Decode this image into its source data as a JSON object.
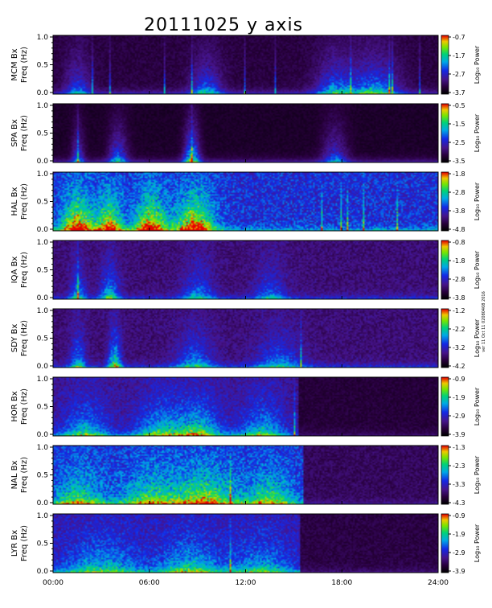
{
  "chart_data": {
    "type": "heatmap",
    "title": "20111025 y axis",
    "xlabel": "",
    "x_ticks": [
      "00:00",
      "06:00",
      "12:00",
      "18:00",
      "24:00"
    ],
    "x_range": [
      0,
      24
    ],
    "colorbar_label": "Log₁₀ Power",
    "side_note": "ver 11 Oct 11 02080408 2016",
    "panels": [
      {
        "station": "MCM Bx",
        "ylabel_station": "MCM Bx",
        "ylabel_unit": "Freq (Hz)",
        "y_ticks": [
          "1.0",
          "0.5",
          "0.0"
        ],
        "ylim": [
          0,
          1
        ],
        "colorbar_ticks": [
          "-0.7",
          "-1.7",
          "-2.7",
          "-3.7"
        ],
        "cmin": -3.7,
        "cmax": -0.7,
        "activity": [
          {
            "t": 1.5,
            "w": 0.8,
            "a": 0.5
          },
          {
            "t": 9.5,
            "w": 1.0,
            "a": 0.55
          },
          {
            "t": 17.5,
            "w": 1.2,
            "a": 0.6
          },
          {
            "t": 20.0,
            "w": 1.5,
            "a": 0.7
          }
        ],
        "lines": [
          2.4,
          3.5,
          6.9,
          8.6,
          11.9,
          13.8,
          18.5,
          20.9,
          21.1,
          22.8
        ],
        "base": 0.15
      },
      {
        "station": "SPA Bx",
        "ylabel_station": "SPA Bx",
        "ylabel_unit": "Freq (Hz)",
        "y_ticks": [
          "1.0",
          "0.5",
          "0.0"
        ],
        "ylim": [
          0,
          1
        ],
        "colorbar_ticks": [
          "-0.5",
          "-1.5",
          "-2.5",
          "-3.5"
        ],
        "cmin": -3.5,
        "cmax": -0.5,
        "activity": [
          {
            "t": 1.5,
            "w": 0.4,
            "a": 0.5
          },
          {
            "t": 4.0,
            "w": 0.6,
            "a": 0.6
          },
          {
            "t": 8.6,
            "w": 0.5,
            "a": 0.9
          },
          {
            "t": 17.5,
            "w": 0.8,
            "a": 0.5
          }
        ],
        "lines": [
          1.5,
          8.6
        ],
        "base": 0.1
      },
      {
        "station": "HAL Bx",
        "ylabel_station": "HAL Bx",
        "ylabel_unit": "Freq (Hz)",
        "y_ticks": [
          "1.0",
          "0.5",
          "0.0"
        ],
        "ylim": [
          0,
          1
        ],
        "colorbar_ticks": [
          "-1.8",
          "-2.8",
          "-3.8",
          "-4.8"
        ],
        "cmin": -4.8,
        "cmax": -1.8,
        "activity": [
          {
            "t": 1.5,
            "w": 1.0,
            "a": 1.0
          },
          {
            "t": 3.5,
            "w": 0.8,
            "a": 0.9
          },
          {
            "t": 6.0,
            "w": 1.0,
            "a": 1.0
          },
          {
            "t": 8.8,
            "w": 1.2,
            "a": 1.0
          }
        ],
        "lines": [
          16.7,
          17.9,
          18.3,
          19.3,
          21.4
        ],
        "base": 0.45
      },
      {
        "station": "IQA Bx",
        "ylabel_station": "IQA Bx",
        "ylabel_unit": "Freq (Hz)",
        "y_ticks": [
          "1.0",
          "0.5",
          "0.0"
        ],
        "ylim": [
          0,
          1
        ],
        "colorbar_ticks": [
          "-0.8",
          "-1.8",
          "-2.8",
          "-3.8"
        ],
        "cmin": -3.8,
        "cmax": -0.8,
        "activity": [
          {
            "t": 1.5,
            "w": 0.5,
            "a": 0.5
          },
          {
            "t": 3.5,
            "w": 0.6,
            "a": 0.6
          },
          {
            "t": 9.0,
            "w": 1.0,
            "a": 0.45
          },
          {
            "t": 13.5,
            "w": 1.0,
            "a": 0.4
          }
        ],
        "lines": [
          1.5
        ],
        "base": 0.25
      },
      {
        "station": "SDY Bx",
        "ylabel_station": "SDY Bx",
        "ylabel_unit": "Freq (Hz)",
        "y_ticks": [
          "1.0",
          "0.5",
          "0.0"
        ],
        "ylim": [
          0,
          1
        ],
        "colorbar_ticks": [
          "-1.2",
          "-2.2",
          "-3.2",
          "-4.2"
        ],
        "cmin": -4.2,
        "cmax": -1.2,
        "activity": [
          {
            "t": 1.5,
            "w": 0.5,
            "a": 0.55
          },
          {
            "t": 3.8,
            "w": 0.4,
            "a": 0.8
          },
          {
            "t": 8.8,
            "w": 1.2,
            "a": 0.5
          },
          {
            "t": 14.0,
            "w": 1.5,
            "a": 0.45
          }
        ],
        "lines": [
          15.4
        ],
        "base": 0.25
      },
      {
        "station": "HOR Bx",
        "ylabel_station": "HOR Bx",
        "ylabel_unit": "Freq (Hz)",
        "y_ticks": [
          "1.0",
          "0.5",
          "0.0"
        ],
        "ylim": [
          0,
          1
        ],
        "colorbar_ticks": [
          "-0.9",
          "-1.9",
          "-2.9",
          "-3.9"
        ],
        "cmin": -3.9,
        "cmax": -0.9,
        "activity": [
          {
            "t": 2.0,
            "w": 1.5,
            "a": 0.55
          },
          {
            "t": 6.5,
            "w": 1.5,
            "a": 0.6
          },
          {
            "t": 9.0,
            "w": 1.5,
            "a": 0.7
          },
          {
            "t": 13.0,
            "w": 1.5,
            "a": 0.55
          }
        ],
        "lines": [
          15.0
        ],
        "base": 0.3,
        "quiet_after": 15.2
      },
      {
        "station": "NAL Bx",
        "ylabel_station": "NAL Bx",
        "ylabel_unit": "Freq (Hz)",
        "y_ticks": [
          "1.0",
          "0.5",
          "0.0"
        ],
        "ylim": [
          0,
          1
        ],
        "colorbar_ticks": [
          "-1.3",
          "-2.3",
          "-3.3",
          "-4.3"
        ],
        "cmin": -4.3,
        "cmax": -1.3,
        "activity": [
          {
            "t": 1.5,
            "w": 1.5,
            "a": 0.55
          },
          {
            "t": 6.0,
            "w": 2.0,
            "a": 0.55
          },
          {
            "t": 9.5,
            "w": 2.0,
            "a": 0.7
          },
          {
            "t": 13.5,
            "w": 1.5,
            "a": 0.55
          }
        ],
        "lines": [
          11.0
        ],
        "base": 0.45,
        "quiet_after": 15.5
      },
      {
        "station": "LYR Bx",
        "ylabel_station": "LYR Bx",
        "ylabel_unit": "Freq (Hz)",
        "y_ticks": [
          "1.0",
          "0.5",
          "0.0"
        ],
        "ylim": [
          0,
          1
        ],
        "colorbar_ticks": [
          "-0.9",
          "-1.9",
          "-2.9",
          "-3.9"
        ],
        "cmin": -3.9,
        "cmax": -0.9,
        "activity": [
          {
            "t": 3.0,
            "w": 2.5,
            "a": 0.5
          },
          {
            "t": 8.5,
            "w": 2.0,
            "a": 0.55
          },
          {
            "t": 13.0,
            "w": 2.0,
            "a": 0.45
          }
        ],
        "lines": [
          11.0
        ],
        "base": 0.35,
        "quiet_after": 15.3
      }
    ]
  }
}
